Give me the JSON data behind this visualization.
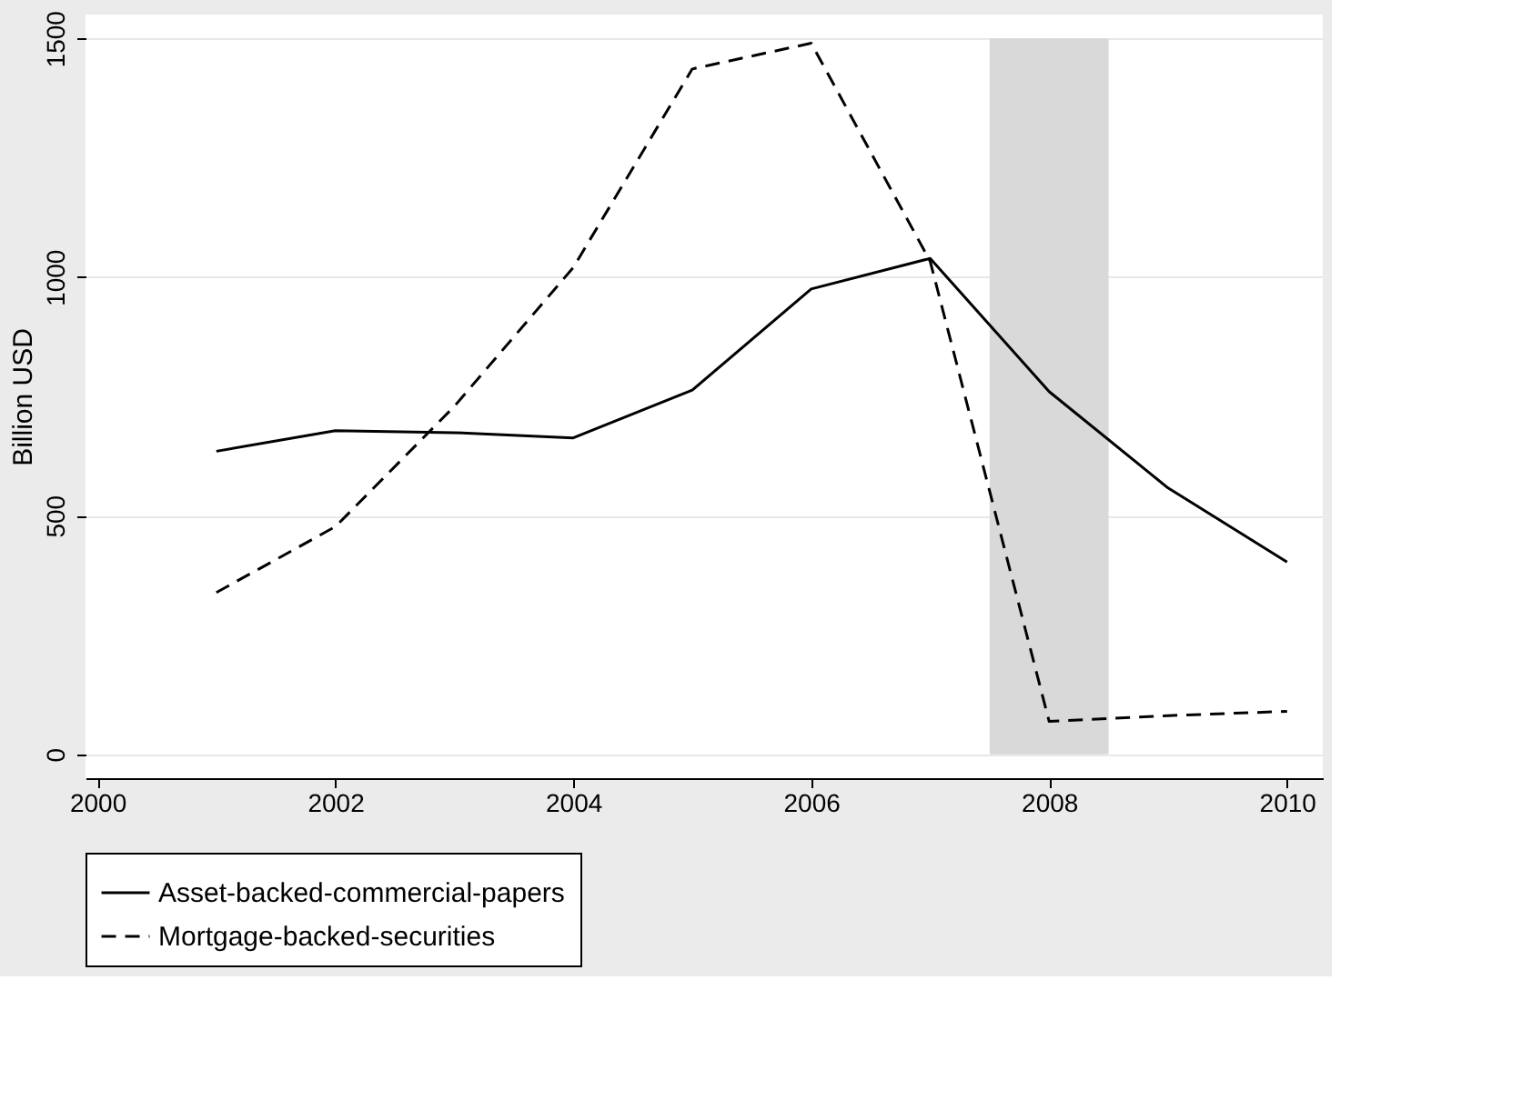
{
  "chart_data": {
    "type": "line",
    "ylabel": "Billion USD",
    "x": [
      2001,
      2002,
      2003,
      2004,
      2005,
      2006,
      2007,
      2008,
      2009,
      2010
    ],
    "series": [
      {
        "name": "Asset-backed-commercial-papers",
        "color": "#000000",
        "line_style": "solid",
        "values": [
          635,
          678,
          674,
          663,
          763,
          975,
          1039,
          760,
          558,
          403
        ]
      },
      {
        "name": "Mortgage-backed-securities",
        "color": "#000000",
        "line_style": "dashed",
        "values": [
          339,
          477,
          729,
          1020,
          1436,
          1490,
          1033,
          69,
          81,
          90
        ]
      }
    ],
    "xlim": [
      1999.9,
      2010.3
    ],
    "xticks": [
      2000,
      2002,
      2004,
      2006,
      2008,
      2010
    ],
    "ylim": [
      -50,
      1550
    ],
    "yticks": [
      0,
      500,
      1000,
      1500
    ],
    "bands": [
      {
        "axis": "x",
        "from": 2007.5,
        "to": 2008.5,
        "color": "#d9d9d9"
      }
    ],
    "grid": "y",
    "legend": "bottom",
    "marker": "none"
  }
}
